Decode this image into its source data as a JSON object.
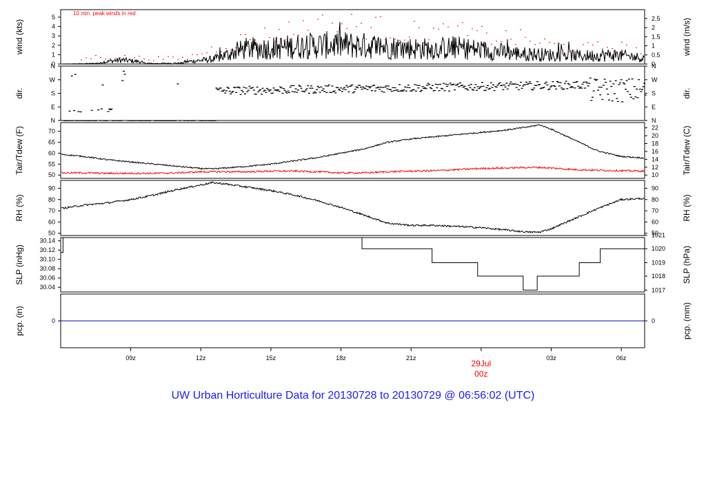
{
  "title": "UW Urban Horticulture Data for 20130728  to  20130729 @ 06:56:02  (UTC)",
  "annotation": "10 min. peak winds in red",
  "colors": {
    "frame": "#000000",
    "peak": "#ff0000",
    "tdew": "#ff0000",
    "pcp": "#0000cc",
    "title": "#1a1aff",
    "day_label": "#ff0000"
  },
  "chart_data": [
    {
      "type": "line",
      "id": "wind",
      "ylabel_left": "wind (kts)",
      "ylabel_right": "wind (m/s)",
      "ylim": [
        0,
        5.8
      ],
      "yticks_left": [
        "0",
        "1",
        "2",
        "3",
        "4",
        "5"
      ],
      "yticks_left_values": [
        0,
        1,
        2,
        3,
        4,
        5
      ],
      "yticks_right": [
        "0",
        "0.5",
        "1",
        "1.5",
        "2",
        "2.5"
      ],
      "yticks_right_values_kts": [
        0,
        0.972,
        1.944,
        2.916,
        3.888,
        4.86
      ],
      "series": [
        {
          "name": "10 min. peak winds",
          "color": "#ff0000",
          "style": "points",
          "approx_level_kts": [
            0,
            1,
            1,
            0.8,
            0.8,
            2.2,
            3.5,
            4.2,
            5.2,
            5.4,
            5.3,
            4.5,
            4.4,
            4.3,
            3.8,
            3.5,
            2.6,
            2.2,
            2.5,
            1.8
          ]
        },
        {
          "name": "wind",
          "color": "#000000",
          "style": "line",
          "approx_level_kts": [
            0,
            0.1,
            0.4,
            0.1,
            0.2,
            0.5,
            1.5,
            1.6,
            1.8,
            1.9,
            1.8,
            1.6,
            1.5,
            1.6,
            1.3,
            1.0,
            0.9,
            0.8,
            0.9,
            0.6
          ]
        }
      ]
    },
    {
      "type": "scatter",
      "id": "dir",
      "ylabel_left": "dir.",
      "ylabel_right": "dir.",
      "ylim": [
        0,
        360
      ],
      "yticks_left": [
        "N",
        "E",
        "S",
        "W",
        "N"
      ],
      "yticks_values": [
        0,
        90,
        180,
        270,
        360
      ]
    },
    {
      "type": "line",
      "id": "temp",
      "ylabel_left": "Tair/Tdew (F)",
      "ylabel_right": "Tair/Tdew (C)",
      "ylim": [
        48.5,
        74
      ],
      "yticks_left": [
        "50",
        "55",
        "60",
        "65",
        "70"
      ],
      "yticks_left_values": [
        50,
        55,
        60,
        65,
        70
      ],
      "yticks_right": [
        "10",
        "12",
        "14",
        "16",
        "18",
        "20",
        "22"
      ],
      "yticks_right_values_f": [
        50,
        53.6,
        57.2,
        60.8,
        64.4,
        68,
        71.6
      ],
      "x_hours": [
        6.0,
        7,
        8,
        9,
        10,
        11,
        12,
        12.5,
        13,
        14,
        15,
        16,
        17,
        18,
        19,
        20,
        21,
        22,
        23,
        24,
        25,
        26,
        26.5,
        27,
        28,
        29,
        30,
        31,
        31.0
      ],
      "series": [
        {
          "name": "Tair",
          "color": "#000000",
          "values": [
            59.5,
            58.5,
            57,
            56,
            55,
            54,
            53,
            52.8,
            53.2,
            54,
            55,
            56.5,
            58,
            60,
            62,
            65,
            66.5,
            67.5,
            68.5,
            69.5,
            70.5,
            72,
            73,
            71,
            66,
            61,
            58.5,
            57.8,
            57.8
          ]
        },
        {
          "name": "Tdew",
          "color": "#ff0000",
          "values": [
            51,
            51,
            50.8,
            50.8,
            50.8,
            51,
            51.5,
            51.5,
            51.5,
            51.5,
            51.8,
            51.8,
            51.5,
            51,
            51,
            51.5,
            51.8,
            52,
            52.5,
            53,
            53.2,
            53.5,
            53.5,
            53.2,
            52.5,
            52.2,
            52,
            51.8,
            51.8
          ]
        }
      ]
    },
    {
      "type": "line",
      "id": "rh",
      "ylabel_left": "RH (%)",
      "ylabel_right": "RH (%)",
      "ylim": [
        48,
        97
      ],
      "yticks_left": [
        "50",
        "60",
        "70",
        "80",
        "90"
      ],
      "yticks_left_values": [
        50,
        60,
        70,
        80,
        90
      ],
      "x_hours": [
        6.0,
        7,
        8,
        9,
        10,
        11,
        12,
        12.5,
        13,
        14,
        15,
        16,
        17,
        18,
        19,
        20,
        21,
        22,
        23,
        24,
        25,
        26,
        26.5,
        27,
        28,
        29,
        30,
        31,
        31.0
      ],
      "series": [
        {
          "name": "RH",
          "color": "#000000",
          "values": [
            72,
            75,
            77,
            80,
            84,
            89,
            93,
            95,
            94,
            91,
            88,
            84,
            79,
            73,
            66,
            59,
            57,
            57,
            56,
            55,
            53,
            51,
            51,
            54,
            63,
            72,
            80,
            81,
            81
          ]
        }
      ]
    },
    {
      "type": "line",
      "id": "slp",
      "ylabel_left": "SLP (inHg)",
      "ylabel_right": "SLP (hPa)",
      "ylim": [
        30.03,
        30.147
      ],
      "yticks_left": [
        "30.04",
        "30.06",
        "30.08",
        "30.10",
        "30.12",
        "30.14"
      ],
      "yticks_left_values": [
        30.04,
        30.06,
        30.08,
        30.1,
        30.12,
        30.14
      ],
      "yticks_right": [
        "1017",
        "1018",
        "1019",
        "1020",
        "1021"
      ],
      "yticks_right_values_inhg": [
        30.034,
        30.064,
        30.093,
        30.123,
        30.152
      ],
      "step_x_hours": [
        6.0,
        6.1,
        18.9,
        21.9,
        23.85,
        25.8,
        26.4,
        28.2,
        29.1,
        31.0
      ],
      "step_values_inhg": [
        30.115,
        30.147,
        30.123,
        30.093,
        30.064,
        30.034,
        30.064,
        30.093,
        30.123,
        30.123
      ]
    },
    {
      "type": "line",
      "id": "pcp",
      "ylabel_left": "pcp. (in)",
      "ylabel_right": "pcp. (mm)",
      "ylim": [
        -1,
        1
      ],
      "yticks_left": [
        "0"
      ],
      "yticks_right": [
        "0"
      ],
      "series": [
        {
          "name": "pcp",
          "color": "#0000cc",
          "values": [
            0,
            0
          ]
        }
      ]
    }
  ],
  "x_axis": {
    "tick_labels": [
      "09z",
      "12z",
      "15z",
      "18z",
      "21z",
      "00z",
      "03z",
      "06z"
    ],
    "tick_hours": [
      9,
      12,
      15,
      18,
      21,
      24,
      27,
      30
    ],
    "range_hours": [
      6.0,
      31.0
    ],
    "day_label_date": "29Jul",
    "day_label_hour": "00z"
  }
}
